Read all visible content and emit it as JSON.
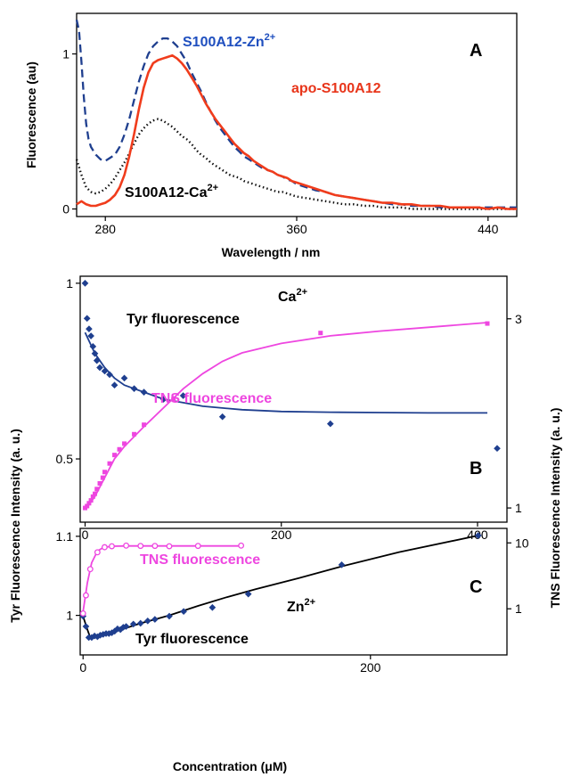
{
  "chart_data": [
    {
      "panel": "A",
      "type": "line",
      "xlabel": "Wavelength / nm",
      "ylabel": "Fluorescence  (au)",
      "xlim": [
        268,
        452
      ],
      "ylim": [
        -0.02,
        1.25
      ],
      "xticks": [
        280,
        360,
        440
      ],
      "yticks": [
        0,
        1
      ],
      "series": [
        {
          "name": "S100A12-Zn2+",
          "color": "#1f3f8f",
          "style": "dashed",
          "label_color": "#1f4fbf",
          "x": [
            268,
            269,
            270,
            271,
            272,
            273,
            274,
            276,
            278,
            280,
            282,
            284,
            286,
            288,
            290,
            292,
            294,
            296,
            298,
            300,
            302,
            304,
            306,
            308,
            310,
            312,
            314,
            316,
            318,
            320,
            322,
            324,
            326,
            328,
            330,
            332,
            334,
            336,
            338,
            340,
            342,
            344,
            346,
            348,
            350,
            352,
            354,
            356,
            358,
            360,
            364,
            368,
            372,
            376,
            380,
            384,
            388,
            392,
            396,
            400,
            404,
            408,
            412,
            416,
            420,
            424,
            428,
            432,
            436,
            440,
            444,
            448,
            452
          ],
          "y": [
            1.22,
            1.15,
            0.95,
            0.72,
            0.55,
            0.45,
            0.4,
            0.35,
            0.32,
            0.31,
            0.33,
            0.35,
            0.4,
            0.48,
            0.58,
            0.7,
            0.82,
            0.92,
            1.0,
            1.05,
            1.08,
            1.1,
            1.1,
            1.08,
            1.05,
            1.0,
            0.95,
            0.88,
            0.82,
            0.76,
            0.69,
            0.63,
            0.57,
            0.52,
            0.48,
            0.44,
            0.4,
            0.37,
            0.34,
            0.32,
            0.3,
            0.28,
            0.26,
            0.25,
            0.24,
            0.22,
            0.21,
            0.19,
            0.18,
            0.16,
            0.14,
            0.12,
            0.11,
            0.09,
            0.08,
            0.07,
            0.06,
            0.05,
            0.04,
            0.03,
            0.03,
            0.02,
            0.02,
            0.02,
            0.01,
            0.01,
            0.01,
            0.01,
            0.01,
            0.01,
            0.01,
            0.01,
            0.01
          ]
        },
        {
          "name": "apo-S100A12",
          "color": "#f03c1c",
          "style": "solid",
          "label_color": "#e8351a",
          "x": [
            268,
            270,
            272,
            274,
            276,
            278,
            280,
            282,
            284,
            286,
            288,
            290,
            292,
            294,
            296,
            298,
            300,
            302,
            304,
            306,
            308,
            310,
            312,
            314,
            316,
            318,
            320,
            322,
            324,
            326,
            328,
            330,
            332,
            334,
            336,
            338,
            340,
            342,
            344,
            346,
            348,
            350,
            352,
            354,
            356,
            358,
            360,
            364,
            368,
            372,
            376,
            380,
            384,
            388,
            392,
            396,
            400,
            404,
            408,
            412,
            416,
            420,
            424,
            428,
            432,
            436,
            440,
            444,
            448,
            452
          ],
          "y": [
            0.03,
            0.05,
            0.03,
            0.02,
            0.02,
            0.03,
            0.04,
            0.06,
            0.09,
            0.14,
            0.22,
            0.34,
            0.48,
            0.64,
            0.78,
            0.88,
            0.94,
            0.96,
            0.97,
            0.98,
            0.99,
            0.97,
            0.94,
            0.9,
            0.85,
            0.8,
            0.74,
            0.68,
            0.63,
            0.58,
            0.54,
            0.5,
            0.46,
            0.42,
            0.39,
            0.36,
            0.34,
            0.31,
            0.29,
            0.27,
            0.25,
            0.24,
            0.22,
            0.21,
            0.2,
            0.18,
            0.17,
            0.15,
            0.13,
            0.11,
            0.09,
            0.08,
            0.07,
            0.06,
            0.05,
            0.04,
            0.04,
            0.03,
            0.03,
            0.02,
            0.02,
            0.02,
            0.01,
            0.01,
            0.01,
            0.01,
            0.0,
            0.01,
            0.0,
            0.0
          ]
        },
        {
          "name": "S100A12-Ca2+",
          "color": "#111111",
          "style": "dotted",
          "label_color": "#000000",
          "x": [
            268,
            270,
            272,
            274,
            276,
            278,
            280,
            282,
            284,
            286,
            288,
            290,
            292,
            294,
            296,
            298,
            300,
            302,
            304,
            306,
            308,
            310,
            312,
            314,
            316,
            318,
            320,
            322,
            324,
            326,
            328,
            330,
            332,
            334,
            336,
            338,
            340,
            342,
            344,
            346,
            348,
            350,
            352,
            354,
            356,
            358,
            360,
            364,
            368,
            372,
            376,
            380,
            384,
            388,
            392,
            396,
            400,
            404,
            408,
            412,
            416,
            420,
            424,
            428,
            432,
            436,
            440,
            444,
            448,
            452
          ],
          "y": [
            0.32,
            0.22,
            0.14,
            0.11,
            0.1,
            0.11,
            0.13,
            0.16,
            0.2,
            0.25,
            0.3,
            0.36,
            0.42,
            0.48,
            0.52,
            0.55,
            0.57,
            0.58,
            0.57,
            0.55,
            0.53,
            0.5,
            0.47,
            0.45,
            0.42,
            0.38,
            0.35,
            0.33,
            0.3,
            0.28,
            0.26,
            0.24,
            0.22,
            0.21,
            0.2,
            0.18,
            0.17,
            0.16,
            0.15,
            0.14,
            0.13,
            0.12,
            0.11,
            0.11,
            0.1,
            0.09,
            0.08,
            0.07,
            0.06,
            0.05,
            0.04,
            0.03,
            0.03,
            0.02,
            0.02,
            0.01,
            0.01,
            0.01,
            0.0,
            0.0,
            0.0,
            0.0,
            0.0,
            0.0,
            0.0,
            0.0,
            0.0,
            0.0,
            0.0,
            0.0
          ]
        }
      ]
    },
    {
      "panel": "B",
      "type": "scatter",
      "annotation": "Ca2+",
      "xlim": [
        -5,
        430
      ],
      "ylim_left": [
        0.32,
        1.02
      ],
      "ylim_right": [
        0.85,
        3.45
      ],
      "xticks": [
        0,
        200,
        400
      ],
      "yticks_left": [
        0.5,
        1
      ],
      "yticks_right": [
        1,
        3
      ],
      "series": [
        {
          "name": "Tyr fluorescence",
          "axis": "left",
          "color": "#1f3f8f",
          "marker": "diamond",
          "points_x": [
            0,
            2,
            4,
            6,
            8,
            10,
            12,
            15,
            20,
            25,
            30,
            40,
            50,
            60,
            80,
            100,
            140,
            250,
            420
          ],
          "points_y": [
            1.0,
            0.9,
            0.87,
            0.85,
            0.82,
            0.8,
            0.78,
            0.76,
            0.75,
            0.74,
            0.71,
            0.73,
            0.7,
            0.69,
            0.67,
            0.68,
            0.62,
            0.6,
            0.53
          ],
          "fit_x": [
            0,
            5,
            10,
            20,
            30,
            40,
            50,
            60,
            80,
            100,
            120,
            140,
            160,
            200,
            250,
            300,
            350,
            410
          ],
          "fit_y": [
            0.86,
            0.83,
            0.8,
            0.76,
            0.73,
            0.71,
            0.7,
            0.69,
            0.67,
            0.66,
            0.65,
            0.645,
            0.64,
            0.635,
            0.633,
            0.632,
            0.631,
            0.631
          ]
        },
        {
          "name": "TNS fluorescence",
          "axis": "right",
          "color": "#ee46e0",
          "marker": "square",
          "points_x": [
            0,
            2,
            4,
            6,
            8,
            10,
            12,
            15,
            18,
            20,
            25,
            30,
            35,
            40,
            50,
            60,
            90,
            240,
            410
          ],
          "points_y": [
            1.0,
            1.02,
            1.05,
            1.08,
            1.12,
            1.15,
            1.2,
            1.26,
            1.32,
            1.38,
            1.47,
            1.56,
            1.62,
            1.68,
            1.78,
            1.88,
            2.15,
            2.85,
            2.95
          ],
          "fit_x": [
            0,
            10,
            20,
            30,
            40,
            60,
            80,
            100,
            120,
            140,
            160,
            200,
            250,
            300,
            350,
            410
          ],
          "fit_y": [
            0.98,
            1.12,
            1.32,
            1.52,
            1.65,
            1.86,
            2.06,
            2.26,
            2.42,
            2.55,
            2.64,
            2.74,
            2.82,
            2.87,
            2.91,
            2.96
          ]
        }
      ]
    },
    {
      "panel": "C",
      "type": "scatter",
      "annotation": "Zn2+",
      "xlabel": "Concentration (μM)",
      "xlim": [
        -2,
        295
      ],
      "ylim_left": [
        0.95,
        1.11
      ],
      "y_right_scale": "log",
      "ylim_right_log10": [
        -0.7,
        1.22
      ],
      "xticks": [
        0,
        200
      ],
      "yticks_left": [
        1,
        1.1
      ],
      "yticks_right": [
        1,
        10
      ],
      "series": [
        {
          "name": "Tyr fluorescence",
          "axis": "left",
          "color": "#1f3f8f",
          "marker": "diamond",
          "points_x": [
            0,
            2,
            4,
            6,
            8,
            10,
            12,
            14,
            16,
            18,
            20,
            22,
            24,
            26,
            28,
            30,
            35,
            40,
            45,
            50,
            60,
            70,
            90,
            115,
            180,
            275
          ],
          "points_y": [
            0.999,
            0.986,
            0.972,
            0.972,
            0.974,
            0.973,
            0.975,
            0.976,
            0.977,
            0.977,
            0.978,
            0.98,
            0.983,
            0.982,
            0.985,
            0.986,
            0.989,
            0.99,
            0.993,
            0.995,
            0.999,
            1.005,
            1.01,
            1.027,
            1.064,
            1.101
          ],
          "fit_x": [
            0,
            3,
            5,
            8,
            12,
            15,
            20,
            30,
            40,
            50,
            60,
            80,
            100,
            120,
            150,
            180,
            220,
            275
          ],
          "fit_y": [
            0.999,
            0.982,
            0.972,
            0.973,
            0.974,
            0.976,
            0.978,
            0.984,
            0.99,
            0.995,
            1.0,
            1.012,
            1.023,
            1.033,
            1.047,
            1.062,
            1.08,
            1.101
          ]
        },
        {
          "name": "TNS fluorescence",
          "axis": "right",
          "color": "#ee46e0",
          "marker": "circle",
          "points_x": [
            0,
            2,
            5,
            10,
            15,
            20,
            30,
            40,
            50,
            60,
            80,
            110
          ],
          "points_y": [
            0.85,
            1.6,
            4.0,
            7.2,
            8.6,
            8.9,
            9.1,
            9.0,
            9.0,
            8.9,
            9.0,
            9.1
          ],
          "fit_x": [
            0,
            3,
            6,
            10,
            14,
            20,
            30,
            40,
            60,
            110
          ],
          "fit_y": [
            0.9,
            2.5,
            5.0,
            7.5,
            8.5,
            8.9,
            9.0,
            9.0,
            9.0,
            9.0
          ]
        }
      ]
    }
  ],
  "labels": {
    "zn_label": "S100A12-Zn",
    "zn_sup": "2+",
    "apo_label": "apo-S100A12",
    "ca_label": "S100A12-Ca",
    "ca_sup": "2+",
    "panel_a": "A",
    "panel_b": "B",
    "panel_c": "C",
    "ca_ion": "Ca",
    "ca_ion_sup": "2+",
    "zn_ion": "Zn",
    "zn_ion_sup": "2+",
    "b_tyr": "Tyr fluorescence",
    "b_tns": "TNS fluorescence",
    "c_tyr": "Tyr fluorescence",
    "c_tns": "TNS fluorescence",
    "a_ylabel": "Fluorescence  (au)",
    "a_xlabel": "Wavelength / nm",
    "left_ylabel": "Tyr Fluorescence Intensity (a. u.)",
    "right_ylabel": "TNS Fluorescence Intensity (a. u.)",
    "c_xlabel": "Concentration (μM)",
    "a_x_ticks": [
      "280",
      "360",
      "440"
    ],
    "a_y_ticks": [
      "0",
      "1"
    ],
    "b_x_ticks": [
      "0",
      "200",
      "400"
    ],
    "b_yl_ticks": [
      "0.5",
      "1"
    ],
    "b_yr_ticks": [
      "1",
      "3"
    ],
    "c_x_ticks": [
      "0",
      "200"
    ],
    "c_yl_ticks": [
      "1",
      "1.1"
    ],
    "c_yr_ticks": [
      "1",
      "10"
    ]
  }
}
